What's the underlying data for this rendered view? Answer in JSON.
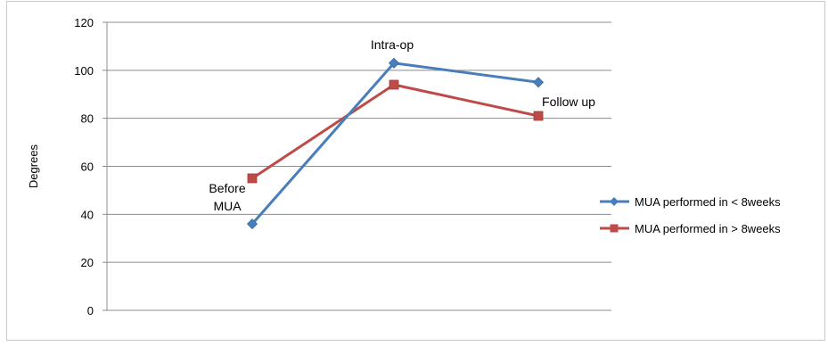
{
  "chart_data": {
    "type": "line",
    "title": "",
    "xlabel": "",
    "ylabel": "Degrees",
    "ylim": [
      0,
      120
    ],
    "yticks": [
      0,
      20,
      40,
      60,
      80,
      100,
      120
    ],
    "grid": "horizontal",
    "legend_position": "right",
    "categories": [
      "Before MUA",
      "Intra-op",
      "Follow up"
    ],
    "annotations": [
      {
        "lines": [
          "Before",
          "MUA"
        ],
        "category": "Before MUA"
      },
      {
        "lines": [
          "Intra-op"
        ],
        "category": "Intra-op"
      },
      {
        "lines": [
          "Follow up"
        ],
        "category": "Follow up"
      }
    ],
    "series": [
      {
        "name": "MUA performed in < 8weeks",
        "values": [
          36,
          103,
          95
        ],
        "color": "#4a7ebb",
        "marker": "diamond"
      },
      {
        "name": "MUA performed in > 8weeks",
        "values": [
          55,
          94,
          81
        ],
        "color": "#be4b48",
        "marker": "square"
      }
    ]
  }
}
